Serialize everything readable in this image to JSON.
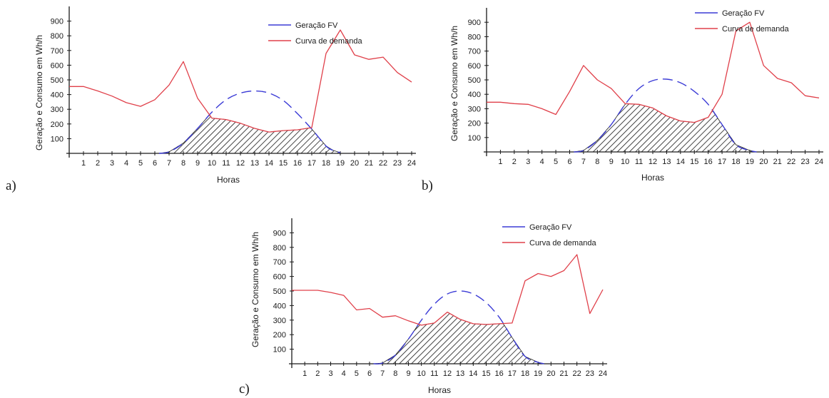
{
  "chart_data": [
    {
      "id": "a",
      "type": "line",
      "panel_label": "a)",
      "xlabel": "Horas",
      "ylabel": "Geração e Consumo em Wh/h",
      "x": [
        1,
        2,
        3,
        4,
        5,
        6,
        7,
        8,
        9,
        10,
        11,
        12,
        13,
        14,
        15,
        16,
        17,
        18,
        19,
        20,
        21,
        22,
        23,
        24
      ],
      "xlim": [
        0,
        24
      ],
      "ylim": [
        0,
        1000
      ],
      "yticks": [
        100,
        200,
        300,
        400,
        500,
        600,
        700,
        800,
        900
      ],
      "series": [
        {
          "name": "Geração FV",
          "style": "dashed",
          "color": "#3b3bd6",
          "points": [
            [
              6.3,
              0
            ],
            [
              7,
              10
            ],
            [
              8,
              70
            ],
            [
              9,
              170
            ],
            [
              10,
              280
            ],
            [
              11,
              365
            ],
            [
              12,
              410
            ],
            [
              13,
              425
            ],
            [
              14,
              410
            ],
            [
              15,
              360
            ],
            [
              16,
              270
            ],
            [
              17,
              165
            ],
            [
              18,
              50
            ],
            [
              18.5,
              20
            ],
            [
              19,
              5
            ]
          ]
        },
        {
          "name": "Curva de demanda",
          "style": "solid",
          "color": "#e0404a",
          "points": [
            [
              0,
              455
            ],
            [
              1,
              455
            ],
            [
              2,
              425
            ],
            [
              3,
              390
            ],
            [
              4,
              345
            ],
            [
              5,
              320
            ],
            [
              6,
              365
            ],
            [
              7,
              465
            ],
            [
              8,
              625
            ],
            [
              9,
              375
            ],
            [
              10,
              240
            ],
            [
              11,
              230
            ],
            [
              12,
              205
            ],
            [
              13,
              170
            ],
            [
              14,
              145
            ],
            [
              15,
              155
            ],
            [
              16,
              160
            ],
            [
              17,
              175
            ],
            [
              18,
              680
            ],
            [
              19,
              840
            ],
            [
              20,
              670
            ],
            [
              21,
              640
            ],
            [
              22,
              655
            ],
            [
              23,
              550
            ],
            [
              24,
              485
            ]
          ]
        }
      ],
      "hatched_region": "min(Geração FV, Curva de demanda)",
      "legend_position": "top-right"
    },
    {
      "id": "b",
      "type": "line",
      "panel_label": "b)",
      "xlabel": "Horas",
      "ylabel": "Geração e Consumo em Wh/h",
      "x": [
        1,
        2,
        3,
        4,
        5,
        6,
        7,
        8,
        9,
        10,
        11,
        12,
        13,
        14,
        15,
        16,
        17,
        18,
        19,
        20,
        21,
        22,
        23,
        24
      ],
      "xlim": [
        0,
        24
      ],
      "ylim": [
        0,
        1000
      ],
      "yticks": [
        100,
        200,
        300,
        400,
        500,
        600,
        700,
        800,
        900
      ],
      "series": [
        {
          "name": "Geração FV",
          "style": "dashed",
          "color": "#3b3bd6",
          "points": [
            [
              6.3,
              0
            ],
            [
              7,
              10
            ],
            [
              8,
              80
            ],
            [
              9,
              190
            ],
            [
              10,
              330
            ],
            [
              11,
              440
            ],
            [
              12,
              495
            ],
            [
              13,
              505
            ],
            [
              14,
              480
            ],
            [
              15,
              420
            ],
            [
              16,
              330
            ],
            [
              17,
              190
            ],
            [
              18,
              50
            ],
            [
              19,
              10
            ],
            [
              19.5,
              0
            ]
          ]
        },
        {
          "name": "Curva de demanda",
          "style": "solid",
          "color": "#e0404a",
          "points": [
            [
              0,
              345
            ],
            [
              1,
              345
            ],
            [
              2,
              335
            ],
            [
              3,
              330
            ],
            [
              4,
              300
            ],
            [
              5,
              260
            ],
            [
              6,
              420
            ],
            [
              7,
              600
            ],
            [
              8,
              500
            ],
            [
              9,
              440
            ],
            [
              10,
              335
            ],
            [
              11,
              330
            ],
            [
              12,
              305
            ],
            [
              13,
              250
            ],
            [
              14,
              215
            ],
            [
              15,
              205
            ],
            [
              16,
              240
            ],
            [
              17,
              400
            ],
            [
              18,
              840
            ],
            [
              19,
              900
            ],
            [
              20,
              600
            ],
            [
              21,
              510
            ],
            [
              22,
              480
            ],
            [
              23,
              390
            ],
            [
              24,
              375
            ]
          ]
        }
      ],
      "hatched_region": "min(Geração FV, Curva de demanda)",
      "legend_position": "top-right"
    },
    {
      "id": "c",
      "type": "line",
      "panel_label": "c)",
      "xlabel": "Horas",
      "ylabel": "Geração e Consumo em Wh/h",
      "x": [
        1,
        2,
        3,
        4,
        5,
        6,
        7,
        8,
        9,
        10,
        11,
        12,
        13,
        14,
        15,
        16,
        17,
        18,
        19,
        20,
        21,
        22,
        23,
        24
      ],
      "xlim": [
        0,
        24
      ],
      "ylim": [
        0,
        1000
      ],
      "yticks": [
        100,
        200,
        300,
        400,
        500,
        600,
        700,
        800,
        900
      ],
      "series": [
        {
          "name": "Geração FV",
          "style": "dashed",
          "color": "#3b3bd6",
          "points": [
            [
              6.3,
              0
            ],
            [
              7,
              5
            ],
            [
              8,
              60
            ],
            [
              9,
              170
            ],
            [
              10,
              300
            ],
            [
              11,
              410
            ],
            [
              12,
              480
            ],
            [
              13,
              500
            ],
            [
              14,
              480
            ],
            [
              15,
              420
            ],
            [
              16,
              320
            ],
            [
              17,
              180
            ],
            [
              18,
              50
            ],
            [
              19,
              10
            ],
            [
              19.5,
              0
            ]
          ]
        },
        {
          "name": "Curva de demanda",
          "style": "solid",
          "color": "#e0404a",
          "points": [
            [
              0,
              505
            ],
            [
              1,
              505
            ],
            [
              2,
              505
            ],
            [
              3,
              490
            ],
            [
              4,
              470
            ],
            [
              5,
              370
            ],
            [
              6,
              380
            ],
            [
              7,
              320
            ],
            [
              8,
              330
            ],
            [
              9,
              295
            ],
            [
              10,
              265
            ],
            [
              11,
              280
            ],
            [
              12,
              355
            ],
            [
              13,
              305
            ],
            [
              14,
              275
            ],
            [
              15,
              270
            ],
            [
              16,
              275
            ],
            [
              17,
              280
            ],
            [
              18,
              570
            ],
            [
              19,
              620
            ],
            [
              20,
              600
            ],
            [
              21,
              640
            ],
            [
              22,
              750
            ],
            [
              23,
              345
            ],
            [
              24,
              510
            ]
          ]
        }
      ],
      "hatched_region": "min(Geração FV, Curva de demanda)",
      "legend_position": "top-right"
    }
  ]
}
